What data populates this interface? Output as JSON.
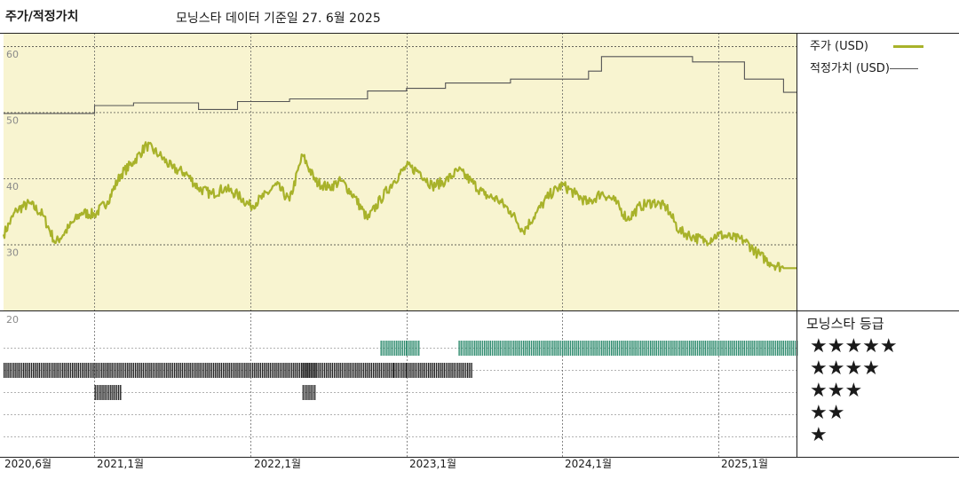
{
  "header": {
    "title": "주가/적정가치",
    "subtitle": "모닝스타 데이터 기준일 27. 6월 2025"
  },
  "legend": {
    "price_label": "주가 (USD)",
    "fair_value_label": "적정가치 (USD)",
    "price_color": "#a8b22a",
    "fair_value_color": "#555555"
  },
  "rating_legend": {
    "title": "모닝스타 등급",
    "rows": [
      "★★★★★",
      "★★★★",
      "★★★",
      "★★",
      "★"
    ]
  },
  "colors": {
    "plot_bg": "#f8f4d0",
    "five_star": "#2e8b6e",
    "four_star": "#222222",
    "three_star": "#222222"
  },
  "chart_data": {
    "type": "line",
    "y_ticks": [
      20,
      30,
      40,
      50,
      60
    ],
    "ylim": [
      20,
      62
    ],
    "x_tick_labels": [
      "2020,6월",
      "2021,1월",
      "2022,1월",
      "2023,1월",
      "2024,1월",
      "2025,1월"
    ],
    "x_range": [
      "2020-06",
      "2025-07"
    ],
    "series": [
      {
        "name": "주가 (USD)",
        "points": [
          [
            "2020-06",
            31.5
          ],
          [
            "2020-07",
            35.2
          ],
          [
            "2020-08",
            36.2
          ],
          [
            "2020-09",
            34.5
          ],
          [
            "2020-10",
            30.2
          ],
          [
            "2020-11",
            32.5
          ],
          [
            "2020-12",
            34.8
          ],
          [
            "2021-01",
            34.5
          ],
          [
            "2021-02",
            36.5
          ],
          [
            "2021-03",
            40.5
          ],
          [
            "2021-04",
            42.5
          ],
          [
            "2021-05",
            45.0
          ],
          [
            "2021-06",
            43.5
          ],
          [
            "2021-07",
            41.5
          ],
          [
            "2021-08",
            40.8
          ],
          [
            "2021-09",
            38.5
          ],
          [
            "2021-10",
            37.6
          ],
          [
            "2021-11",
            38.5
          ],
          [
            "2021-12",
            37.5
          ],
          [
            "2022-01",
            35.8
          ],
          [
            "2022-02",
            37.2
          ],
          [
            "2022-03",
            39.0
          ],
          [
            "2022-04",
            36.6
          ],
          [
            "2022-05",
            43.5
          ],
          [
            "2022-06",
            39.5
          ],
          [
            "2022-07",
            38.6
          ],
          [
            "2022-08",
            39.6
          ],
          [
            "2022-09",
            37.2
          ],
          [
            "2022-10",
            33.8
          ],
          [
            "2022-11",
            36.8
          ],
          [
            "2022-12",
            39.5
          ],
          [
            "2023-01",
            41.8
          ],
          [
            "2023-02",
            41.0
          ],
          [
            "2023-03",
            38.8
          ],
          [
            "2023-04",
            39.6
          ],
          [
            "2023-05",
            41.2
          ],
          [
            "2023-06",
            39.5
          ],
          [
            "2023-07",
            37.5
          ],
          [
            "2023-08",
            36.8
          ],
          [
            "2023-09",
            35.0
          ],
          [
            "2023-10",
            32.0
          ],
          [
            "2023-11",
            34.8
          ],
          [
            "2023-12",
            37.5
          ],
          [
            "2024-01",
            39.0
          ],
          [
            "2024-02",
            37.6
          ],
          [
            "2024-03",
            36.2
          ],
          [
            "2024-04",
            37.8
          ],
          [
            "2024-05",
            36.6
          ],
          [
            "2024-06",
            33.8
          ],
          [
            "2024-07",
            35.8
          ],
          [
            "2024-08",
            36.4
          ],
          [
            "2024-09",
            35.6
          ],
          [
            "2024-10",
            32.0
          ],
          [
            "2024-11",
            31.2
          ],
          [
            "2024-12",
            30.5
          ],
          [
            "2025-01",
            31.5
          ],
          [
            "2025-02",
            31.0
          ],
          [
            "2025-03",
            30.6
          ],
          [
            "2025-04",
            28.6
          ],
          [
            "2025-05",
            27.2
          ],
          [
            "2025-06",
            26.4
          ]
        ]
      },
      {
        "name": "적정가치 (USD)",
        "steps": [
          [
            "2020-06",
            49.8
          ],
          [
            "2021-01",
            51.0
          ],
          [
            "2021-04",
            51.4
          ],
          [
            "2021-09",
            50.4
          ],
          [
            "2021-12",
            51.6
          ],
          [
            "2022-04",
            52.0
          ],
          [
            "2022-10",
            53.2
          ],
          [
            "2023-01",
            53.6
          ],
          [
            "2023-04",
            54.4
          ],
          [
            "2023-09",
            55.0
          ],
          [
            "2024-03",
            56.2
          ],
          [
            "2024-04",
            58.4
          ],
          [
            "2024-11",
            57.6
          ],
          [
            "2025-03",
            55.0
          ],
          [
            "2025-06",
            53.0
          ]
        ]
      }
    ],
    "ratings": [
      {
        "stars": 5,
        "periods": [
          [
            "2022-11",
            "2022-12"
          ],
          [
            "2023-01",
            "2023-01"
          ],
          [
            "2023-05",
            "2025-07"
          ]
        ]
      },
      {
        "stars": 4,
        "periods": [
          [
            "2020-06",
            "2021-01"
          ],
          [
            "2021-02",
            "2022-05"
          ],
          [
            "2022-05",
            "2022-11"
          ],
          [
            "2022-12",
            "2022-12"
          ],
          [
            "2023-01",
            "2023-05"
          ]
        ]
      },
      {
        "stars": 3,
        "periods": [
          [
            "2021-01",
            "2021-02"
          ],
          [
            "2022-05",
            "2022-05"
          ]
        ]
      }
    ],
    "grid": true
  }
}
